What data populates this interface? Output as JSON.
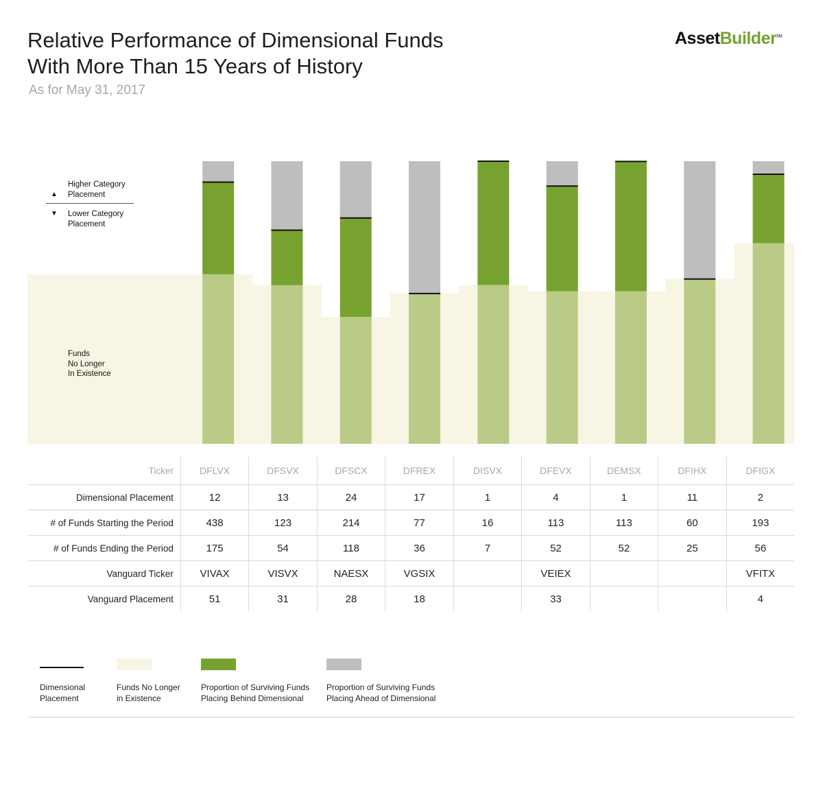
{
  "header": {
    "title_line1": "Relative Performance of Dimensional Funds",
    "title_line2": "With More Than 15 Years of History",
    "subtitle": "As for May 31, 2017",
    "logo_part1": "Asset",
    "logo_part2": "Builder",
    "logo_mark": "SM"
  },
  "side_labels": {
    "higher_line1": "Higher Category",
    "higher_line2": "Placement",
    "lower_line1": "Lower Category",
    "lower_line2": "Placement",
    "up_symbol": "▲",
    "down_symbol": "▼",
    "extinct_line1": "Funds",
    "extinct_line2": "No Longer",
    "extinct_line3": "In Existence"
  },
  "colors": {
    "behind": "#77a22f",
    "ahead": "#bebebe",
    "extinct": "#f8f5e4",
    "behind_over_extinct": "#bacb87",
    "placement_line": "#111111"
  },
  "chart_data": {
    "type": "bar",
    "stacking": "stacked-percent",
    "categories": [
      "DFLVX",
      "DFSVX",
      "DFSCX",
      "DFREX",
      "DISVX",
      "DFEVX",
      "DEMSX",
      "DFIHX",
      "DFIGX"
    ],
    "series": [
      {
        "name": "Funds No Longer in Existence",
        "values": [
          60.0,
          56.1,
          44.9,
          53.2,
          56.2,
          54.0,
          54.0,
          58.3,
          71.0
        ]
      },
      {
        "name": "Proportion of Surviving Funds Placing Behind Dimensional",
        "values": [
          32.6,
          19.5,
          35.0,
          0.0,
          43.8,
          37.2,
          45.9,
          0.0,
          24.4
        ]
      },
      {
        "name": "Proportion of Surviving Funds Placing Ahead of Dimensional",
        "values": [
          7.4,
          24.4,
          20.1,
          46.8,
          0.0,
          8.8,
          0.1,
          41.7,
          4.6
        ]
      }
    ],
    "ylim": [
      0,
      100
    ],
    "legend": "bottom",
    "table": {
      "column_header_label": "Ticker",
      "rows": [
        {
          "label": "Dimensional Placement",
          "values": [
            "12",
            "13",
            "24",
            "17",
            "1",
            "4",
            "1",
            "11",
            "2"
          ]
        },
        {
          "label": "# of Funds Starting the Period",
          "values": [
            "438",
            "123",
            "214",
            "77",
            "16",
            "113",
            "113",
            "60",
            "193"
          ]
        },
        {
          "label": "# of Funds Ending the Period",
          "values": [
            "175",
            "54",
            "118",
            "36",
            "7",
            "52",
            "52",
            "25",
            "56"
          ]
        },
        {
          "label": "Vanguard Ticker",
          "values": [
            "VIVAX",
            "VISVX",
            "NAESX",
            "VGSIX",
            "",
            "VEIEX",
            "",
            "",
            "VFITX"
          ]
        },
        {
          "label": "Vanguard Placement",
          "values": [
            "51",
            "31",
            "28",
            "18",
            "",
            "33",
            "",
            "",
            "4"
          ]
        }
      ]
    }
  },
  "legend": {
    "placement_line1": "Dimensional",
    "placement_line2": "Placement",
    "extinct_line1": "Funds No Longer",
    "extinct_line2": "in Existence",
    "behind_line1": "Proportion of Surviving Funds",
    "behind_line2": "Placing Behind Dimensional",
    "ahead_line1": "Proportion of Surviving Funds",
    "ahead_line2": "Placing Ahead of Dimensional"
  }
}
